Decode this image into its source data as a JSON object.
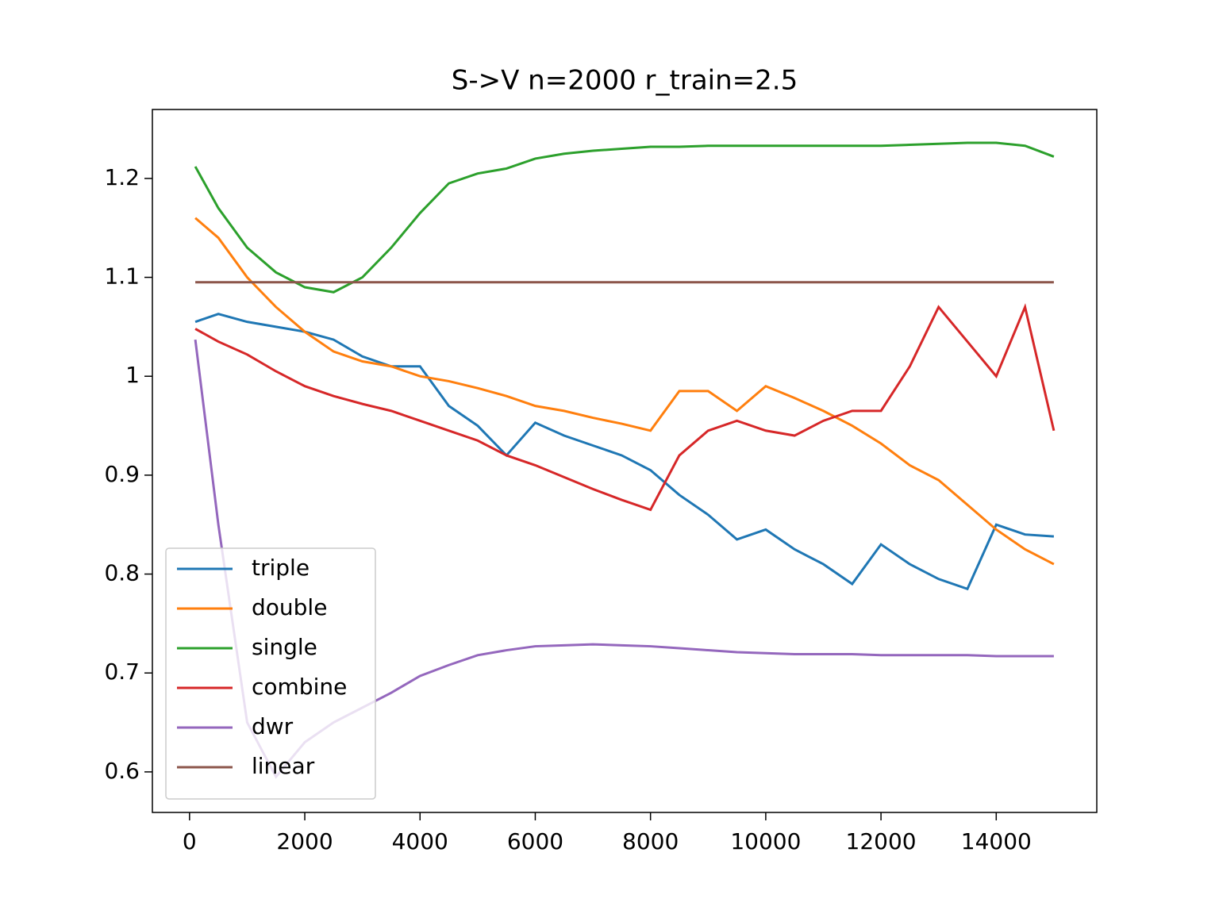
{
  "chart_data": {
    "type": "line",
    "title": "S->V n=2000 r_train=2.5",
    "x": [
      100,
      500,
      1000,
      1500,
      2000,
      2500,
      3000,
      3500,
      4000,
      4500,
      5000,
      5500,
      6000,
      6500,
      7000,
      7500,
      8000,
      8500,
      9000,
      9500,
      10000,
      10500,
      11000,
      11500,
      12000,
      12500,
      13000,
      13500,
      14000,
      14500,
      15000
    ],
    "series": [
      {
        "name": "triple",
        "color": "#1f77b4",
        "values": [
          1.055,
          1.063,
          1.055,
          1.05,
          1.045,
          1.037,
          1.02,
          1.01,
          1.01,
          0.97,
          0.95,
          0.92,
          0.953,
          0.94,
          0.93,
          0.92,
          0.905,
          0.88,
          0.86,
          0.835,
          0.845,
          0.825,
          0.81,
          0.79,
          0.83,
          0.81,
          0.795,
          0.785,
          0.85,
          0.84,
          0.838
        ]
      },
      {
        "name": "double",
        "color": "#ff7f0e",
        "values": [
          1.16,
          1.14,
          1.1,
          1.07,
          1.045,
          1.025,
          1.015,
          1.01,
          1.0,
          0.995,
          0.988,
          0.98,
          0.97,
          0.965,
          0.958,
          0.952,
          0.945,
          0.985,
          0.985,
          0.965,
          0.99,
          0.978,
          0.965,
          0.95,
          0.932,
          0.91,
          0.895,
          0.87,
          0.845,
          0.825,
          0.81
        ]
      },
      {
        "name": "single",
        "color": "#2ca02c",
        "values": [
          1.212,
          1.17,
          1.13,
          1.105,
          1.09,
          1.085,
          1.1,
          1.13,
          1.165,
          1.195,
          1.205,
          1.21,
          1.22,
          1.225,
          1.228,
          1.23,
          1.232,
          1.232,
          1.233,
          1.233,
          1.233,
          1.233,
          1.233,
          1.233,
          1.233,
          1.234,
          1.235,
          1.236,
          1.236,
          1.233,
          1.222
        ]
      },
      {
        "name": "combine",
        "color": "#d62728",
        "values": [
          1.048,
          1.035,
          1.022,
          1.005,
          0.99,
          0.98,
          0.972,
          0.965,
          0.955,
          0.945,
          0.935,
          0.92,
          0.91,
          0.898,
          0.886,
          0.875,
          0.865,
          0.92,
          0.945,
          0.955,
          0.945,
          0.94,
          0.955,
          0.965,
          0.965,
          1.01,
          1.07,
          1.035,
          1.0,
          1.07,
          0.945
        ]
      },
      {
        "name": "dwr",
        "color": "#9467bd",
        "values": [
          1.037,
          0.85,
          0.65,
          0.595,
          0.63,
          0.65,
          0.665,
          0.68,
          0.697,
          0.708,
          0.718,
          0.723,
          0.727,
          0.728,
          0.729,
          0.728,
          0.727,
          0.725,
          0.723,
          0.721,
          0.72,
          0.719,
          0.719,
          0.719,
          0.718,
          0.718,
          0.718,
          0.718,
          0.717,
          0.717,
          0.717
        ]
      },
      {
        "name": "linear",
        "color": "#8c564b",
        "values": [
          1.095,
          1.095,
          1.095,
          1.095,
          1.095,
          1.095,
          1.095,
          1.095,
          1.095,
          1.095,
          1.095,
          1.095,
          1.095,
          1.095,
          1.095,
          1.095,
          1.095,
          1.095,
          1.095,
          1.095,
          1.095,
          1.095,
          1.095,
          1.095,
          1.095,
          1.095,
          1.095,
          1.095,
          1.095,
          1.095,
          1.095
        ]
      }
    ],
    "xlim": [
      -645,
      15745
    ],
    "ylim": [
      0.559,
      1.2697
    ],
    "xticks": [
      0,
      2000,
      4000,
      6000,
      8000,
      10000,
      12000,
      14000
    ],
    "yticks": [
      0.6,
      0.7,
      0.8,
      0.9,
      1.0,
      1.1,
      1.2
    ],
    "legend": "lower left"
  }
}
